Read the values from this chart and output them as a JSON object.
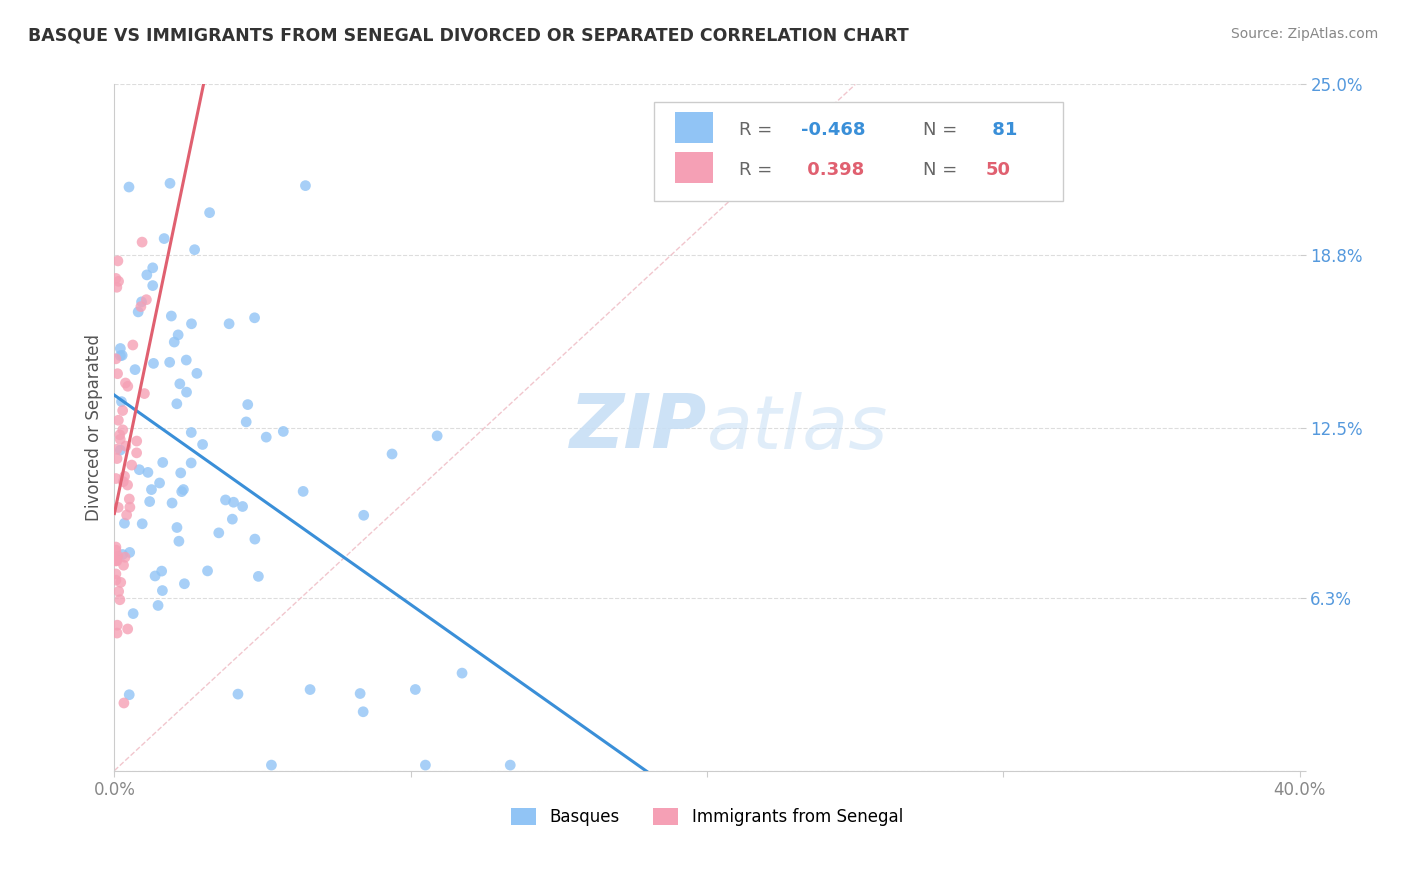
{
  "title": "BASQUE VS IMMIGRANTS FROM SENEGAL DIVORCED OR SEPARATED CORRELATION CHART",
  "source": "Source: ZipAtlas.com",
  "ylabel": "Divorced or Separated",
  "xlim": [
    0.0,
    0.4
  ],
  "ylim": [
    0.0,
    0.25
  ],
  "xticks": [
    0.0,
    0.1,
    0.2,
    0.3,
    0.4
  ],
  "xtick_labels": [
    "0.0%",
    "",
    "",
    "",
    "40.0%"
  ],
  "ytick_labels": [
    "",
    "6.3%",
    "12.5%",
    "18.8%",
    "25.0%"
  ],
  "yticks": [
    0.0,
    0.063,
    0.125,
    0.188,
    0.25
  ],
  "R_basque": -0.468,
  "N_basque": 81,
  "R_senegal": 0.398,
  "N_senegal": 50,
  "color_basque": "#91C4F5",
  "color_senegal": "#F5A0B5",
  "trendline_basque_color": "#3A8FD8",
  "trendline_senegal_color": "#E06070",
  "diag_color": "#F0C0C8",
  "watermark_color": "#C8DFF5",
  "ytick_color": "#5599DD",
  "xtick_color": "#888888",
  "title_color": "#333333",
  "source_color": "#888888",
  "grid_color": "#DDDDDD",
  "legend_border_color": "#CCCCCC",
  "ylabel_color": "#555555",
  "legend_R_color_basque": "#3A8FD8",
  "legend_R_color_senegal": "#E06070",
  "legend_N_color_basque": "#3A8FD8",
  "legend_N_color_senegal": "#E06070"
}
